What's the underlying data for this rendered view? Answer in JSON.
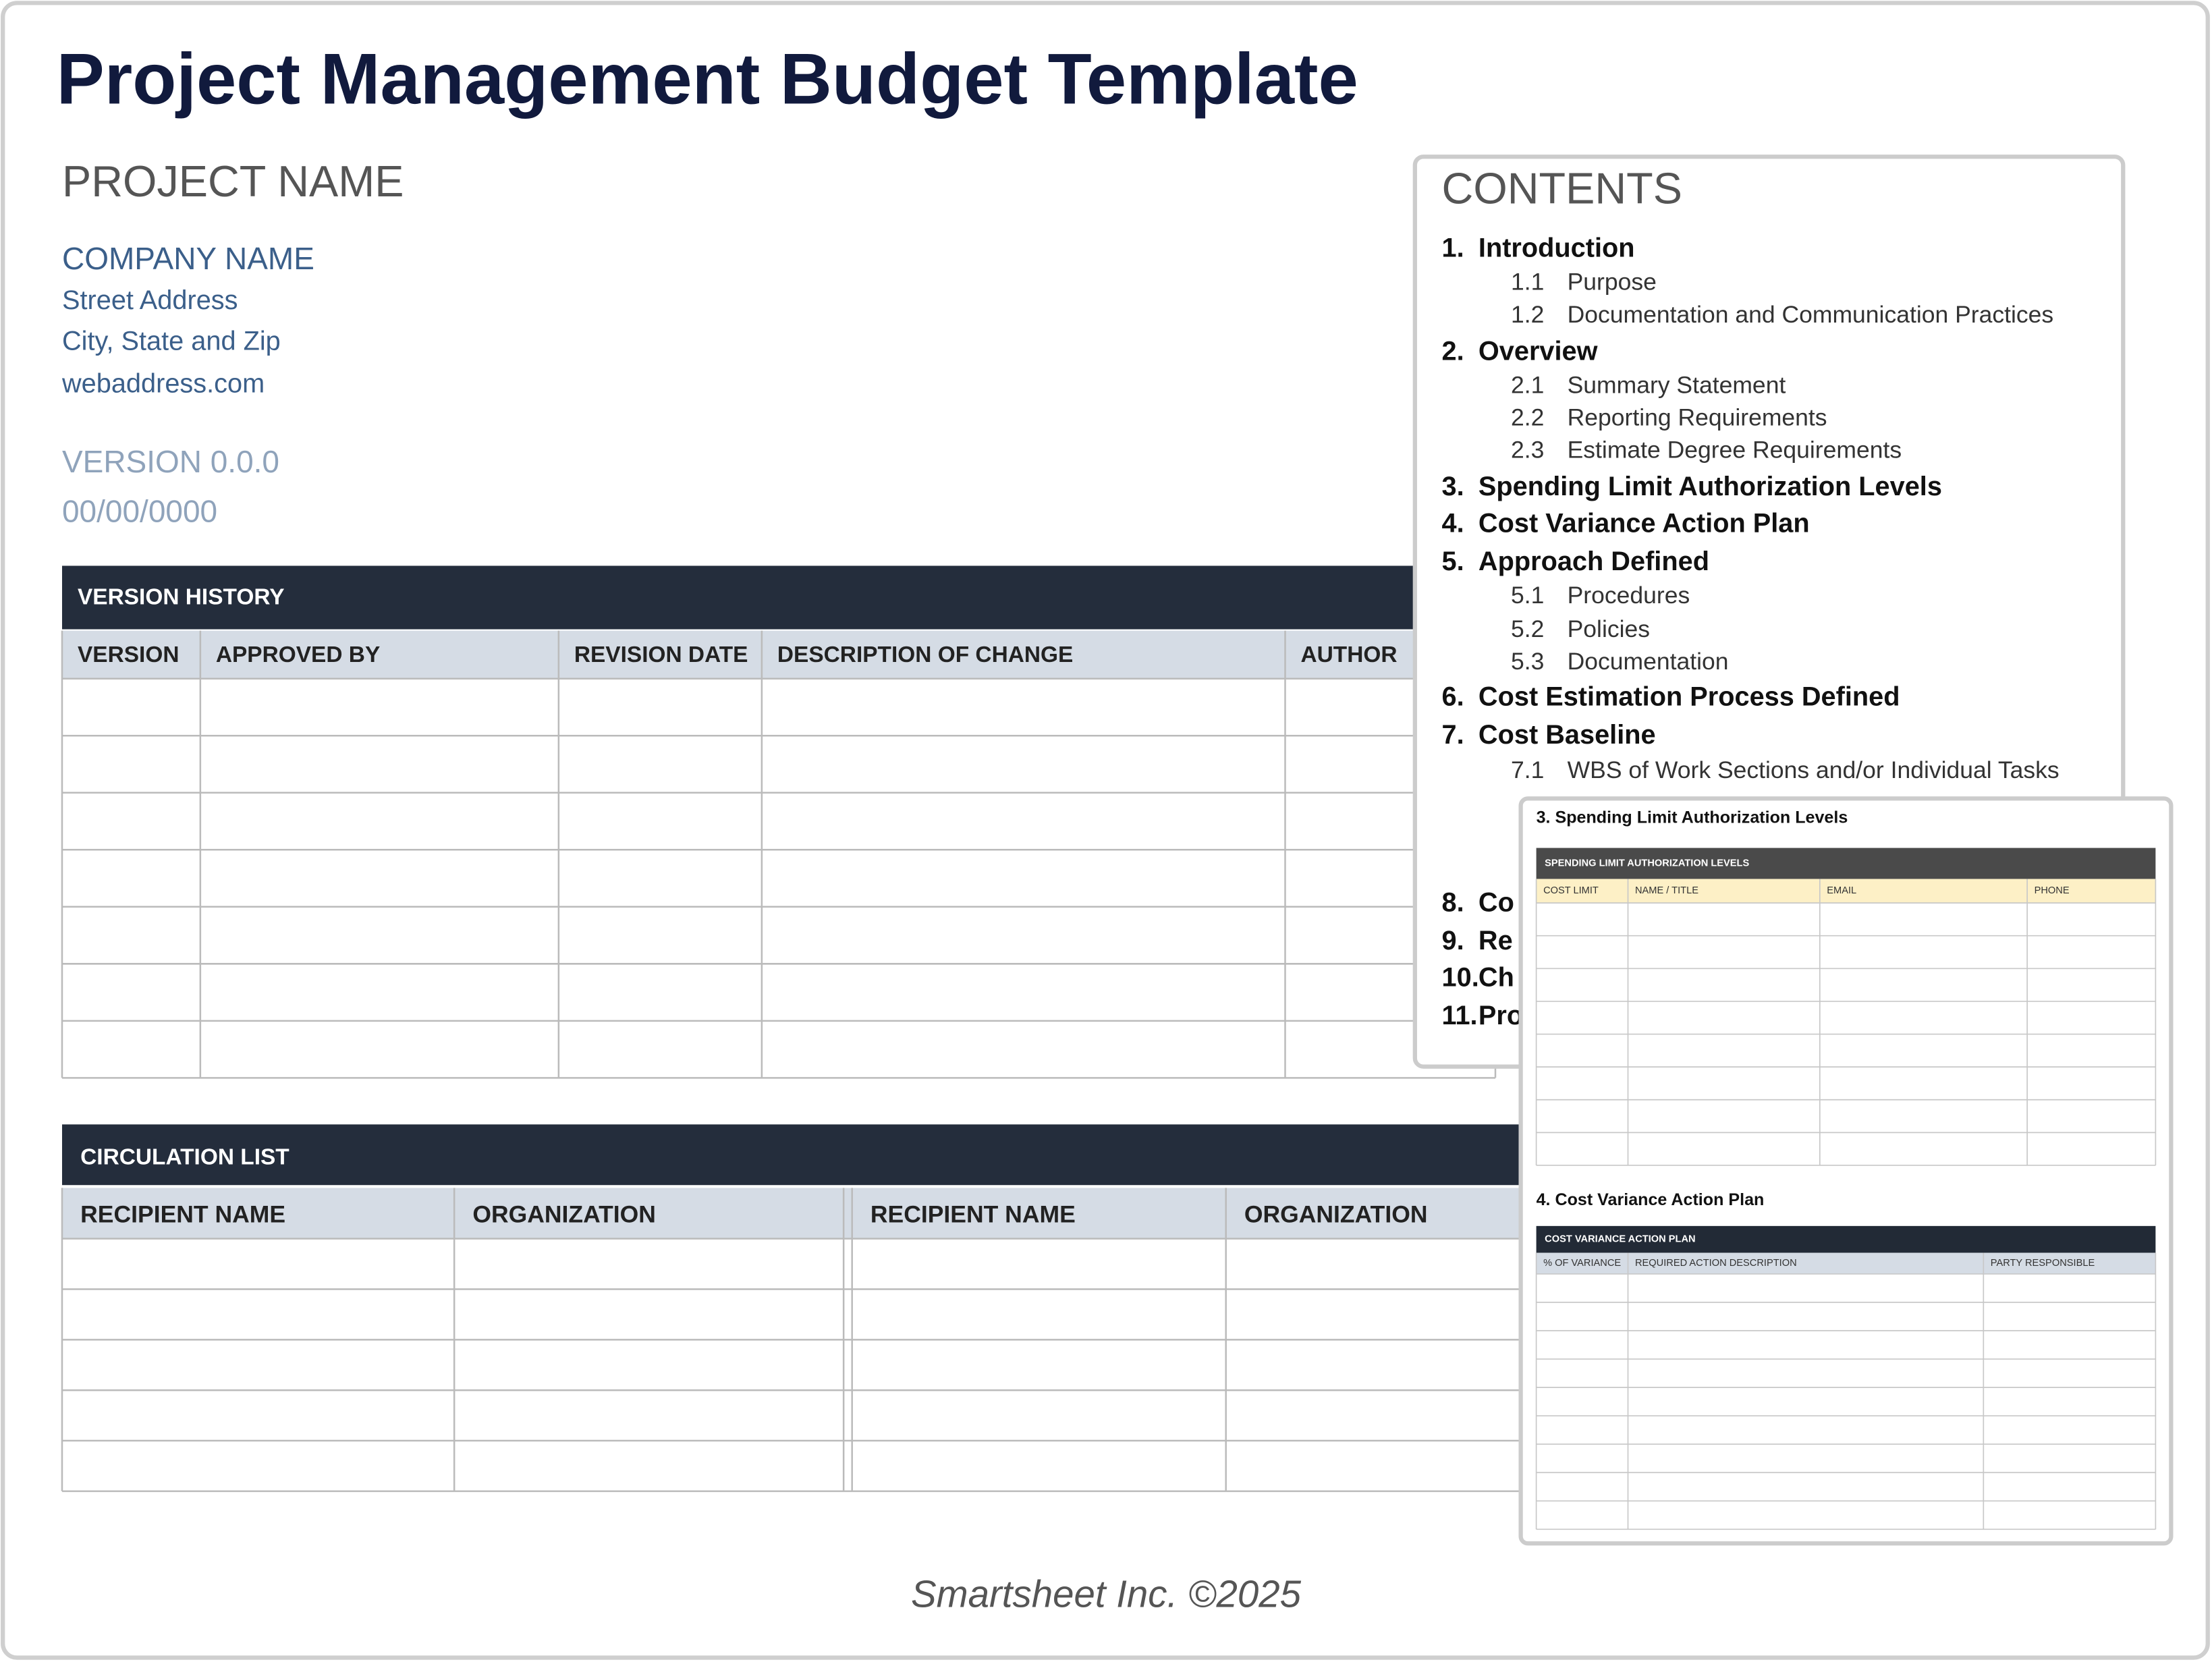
{
  "header": {
    "title": "Project Management Budget Template"
  },
  "project": {
    "name": "PROJECT NAME",
    "company": "COMPANY NAME",
    "street": "Street Address",
    "city": "City, State and Zip",
    "web": "webaddress.com",
    "version": "VERSION 0.0.0",
    "date": "00/00/0000"
  },
  "version_history": {
    "title": "VERSION HISTORY",
    "columns": [
      "VERSION",
      "APPROVED BY",
      "REVISION DATE",
      "DESCRIPTION OF CHANGE",
      "AUTHOR"
    ]
  },
  "circulation_list": {
    "title": "CIRCULATION LIST",
    "columns": [
      "RECIPIENT NAME",
      "ORGANIZATION",
      "RECIPIENT NAME",
      "ORGANIZATION"
    ]
  },
  "contents": {
    "title": "CONTENTS",
    "items": [
      {
        "number": "1.",
        "text": "Introduction"
      },
      {
        "number": "1.1",
        "text": "Purpose"
      },
      {
        "number": "1.2",
        "text": "Documentation and Communication Practices"
      },
      {
        "number": "2.",
        "text": "Overview"
      },
      {
        "number": "2.1",
        "text": "Summary Statement"
      },
      {
        "number": "2.2",
        "text": "Reporting Requirements"
      },
      {
        "number": "2.3",
        "text": "Estimate Degree Requirements"
      },
      {
        "number": "3.",
        "text": "Spending Limit Authorization Levels"
      },
      {
        "number": "4.",
        "text": "Cost Variance Action Plan"
      },
      {
        "number": "5.",
        "text": "Approach Defined"
      },
      {
        "number": "5.1",
        "text": "Procedures"
      },
      {
        "number": "5.2",
        "text": "Policies"
      },
      {
        "number": "5.3",
        "text": "Documentation"
      },
      {
        "number": "6.",
        "text": "Cost Estimation Process Defined"
      },
      {
        "number": "7.",
        "text": "Cost Baseline"
      },
      {
        "number": "7.1",
        "text": "WBS of Work Sections and/or Individual Tasks"
      },
      {
        "number": "8.",
        "text": "Co"
      },
      {
        "number": "9.",
        "text": "Re"
      },
      {
        "number": "10.",
        "text": "Ch"
      },
      {
        "number": "11.",
        "text": "Pro"
      }
    ]
  },
  "preview": {
    "sections": [
      {
        "heading": "3.  Spending Limit Authorization Levels",
        "table_title": "SPENDING LIMIT AUTHORIZATION LEVELS",
        "columns": [
          "COST LIMIT",
          "NAME / TITLE",
          "EMAIL",
          "PHONE"
        ]
      },
      {
        "heading": "4.  Cost Variance Action Plan",
        "table_title": "COST VARIANCE ACTION PLAN",
        "columns": [
          "% OF VARIANCE",
          "REQUIRED ACTION DESCRIPTION",
          "PARTY RESPONSIBLE"
        ]
      }
    ]
  },
  "footer": {
    "text": "Smartsheet Inc. ©2025"
  }
}
